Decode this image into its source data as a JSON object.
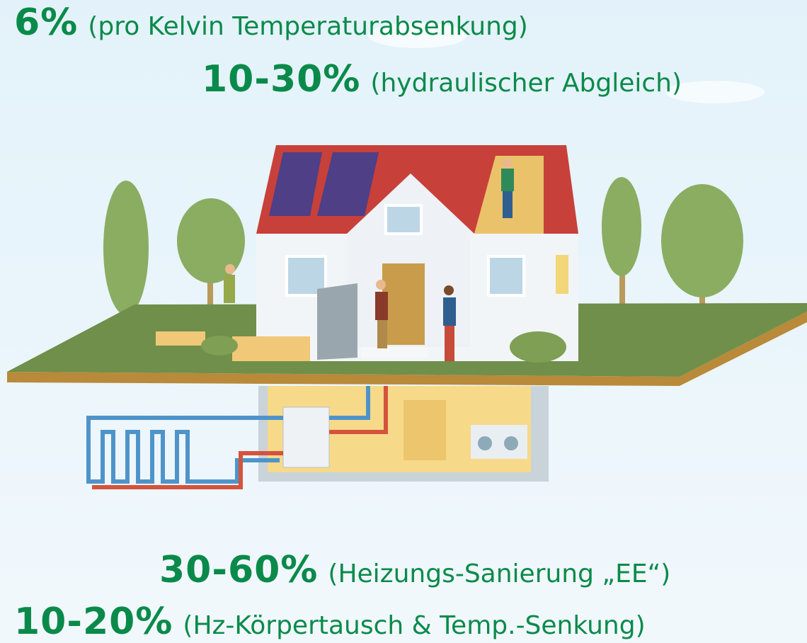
{
  "items": [
    {
      "value": "6%",
      "label": "(pro Kelvin Temperaturabsenkung)"
    },
    {
      "value": "10-30%",
      "label": "(hydraulischer Abgleich)"
    },
    {
      "value": "30-60%",
      "label": "(Heizungs-Sanierung „EE“)"
    },
    {
      "value": "10-20%",
      "label": "(Hz-Körpertausch & Temp.-Senkung)"
    }
  ]
}
